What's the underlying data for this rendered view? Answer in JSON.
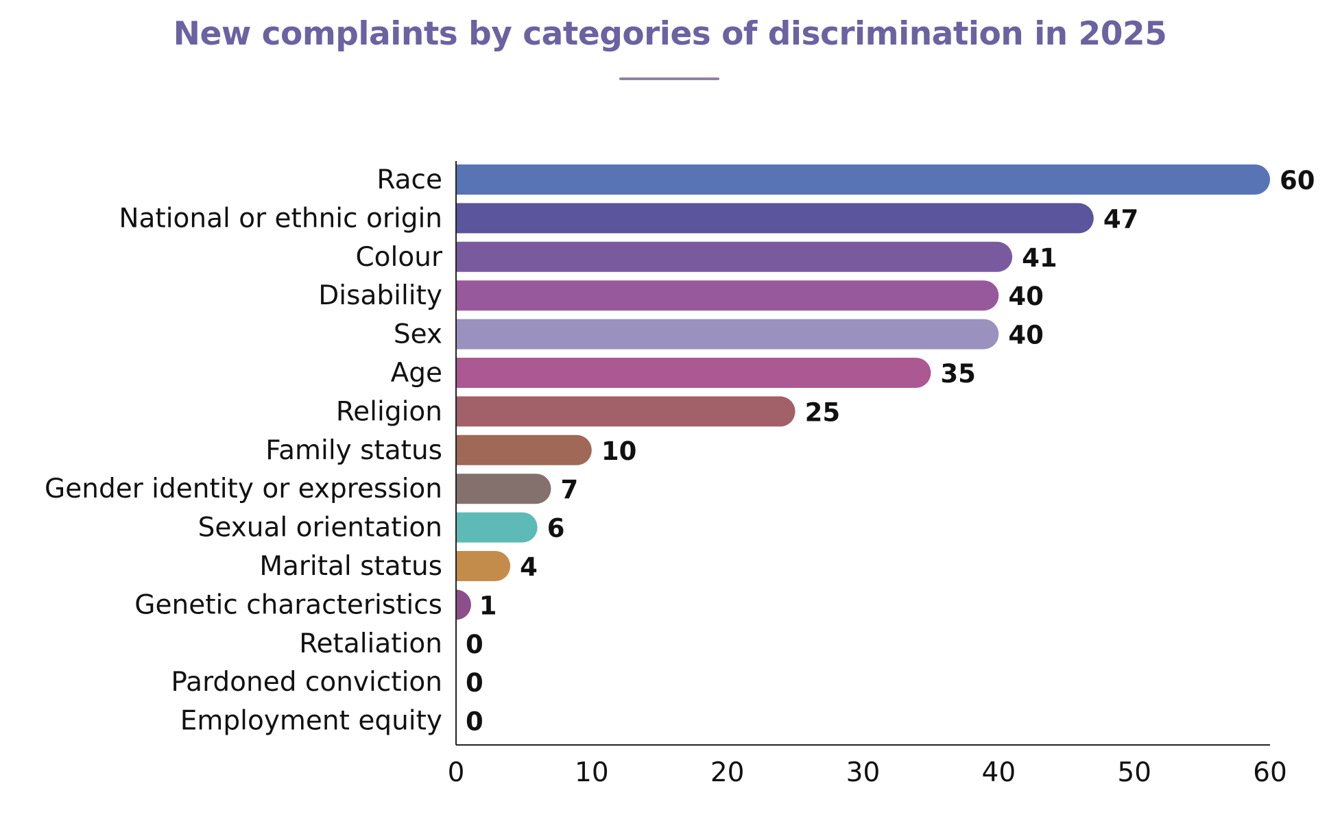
{
  "chart_data": {
    "type": "bar",
    "orientation": "horizontal",
    "title": "New complaints by categories of discrimination in 2025",
    "xlabel": "",
    "ylabel": "",
    "xlim": [
      0,
      60
    ],
    "xticks": [
      0,
      10,
      20,
      30,
      40,
      50,
      60
    ],
    "grid": false,
    "legend": "none",
    "categories": [
      "Race",
      "National or ethnic origin",
      "Colour",
      "Disability",
      "Sex",
      "Age",
      "Religion",
      "Family status",
      "Gender identity or expression",
      "Sexual orientation",
      "Marital status",
      "Genetic characteristics",
      "Retaliation",
      "Pardoned conviction",
      "Employment equity"
    ],
    "values": [
      60,
      47,
      41,
      40,
      40,
      35,
      25,
      10,
      7,
      6,
      4,
      1,
      0,
      0,
      0
    ],
    "colors": [
      "#5874B5",
      "#5B559E",
      "#795A9F",
      "#98599C",
      "#9B91BF",
      "#AB5893",
      "#A26068",
      "#A06856",
      "#84716D",
      "#5EBAB7",
      "#C48C4B",
      "#8C4F8B",
      "#8C4F8B",
      "#8C4F8B",
      "#8C4F8B"
    ],
    "title_color": "#6B62A1",
    "accent_rule_color": "#8F84A3"
  }
}
